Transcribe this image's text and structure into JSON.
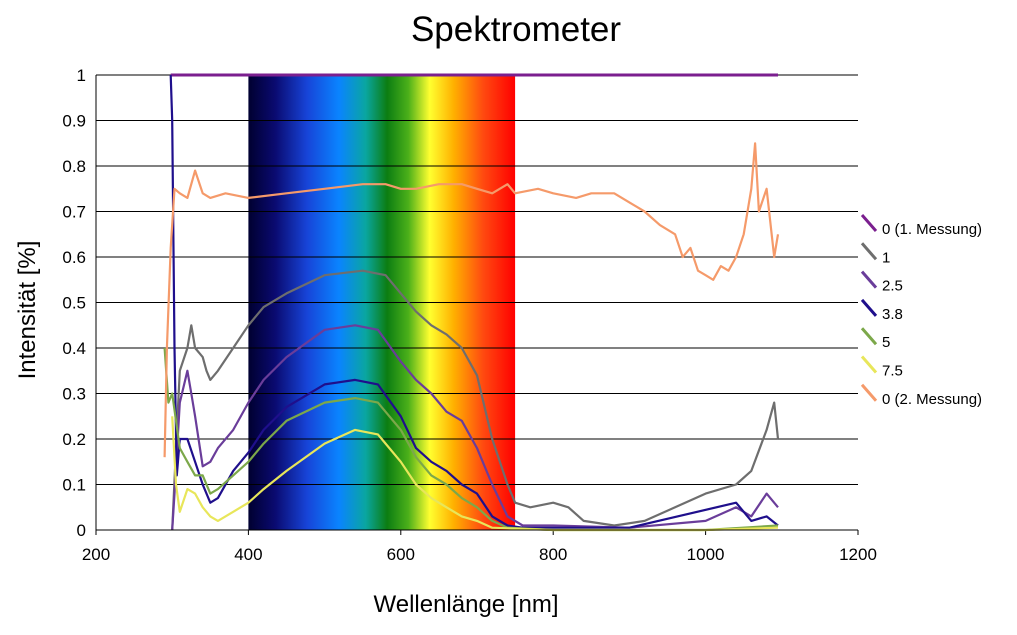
{
  "chart_data": {
    "type": "line",
    "title": "Spektrometer",
    "xlabel": "Wellenlänge [nm]",
    "ylabel": "Intensität [%]",
    "xlim": [
      200,
      1200
    ],
    "ylim": [
      0,
      1
    ],
    "x_ticks": [
      "200",
      "400",
      "600",
      "800",
      "1000",
      "1200"
    ],
    "y_ticks": [
      "0",
      "0.1",
      "0.2",
      "0.3",
      "0.4",
      "0.5",
      "0.6",
      "0.7",
      "0.8",
      "0.9",
      "1"
    ],
    "grid": "horizontal",
    "legend_position": "right",
    "background_band": {
      "x_range": [
        400,
        750
      ],
      "description": "visible spectrum"
    },
    "series": [
      {
        "name": "0 (1. Messung)",
        "color": "#7b1f8f",
        "points": [
          [
            298,
            1.0
          ],
          [
            300,
            1.0
          ],
          [
            400,
            1.0
          ],
          [
            600,
            1.0
          ],
          [
            800,
            1.0
          ],
          [
            1000,
            1.0
          ],
          [
            1095,
            1.0
          ]
        ]
      },
      {
        "name": "1",
        "color": "#6e6e6e",
        "points": [
          [
            300,
            0.0
          ],
          [
            305,
            0.18
          ],
          [
            310,
            0.35
          ],
          [
            320,
            0.4
          ],
          [
            325,
            0.45
          ],
          [
            330,
            0.4
          ],
          [
            340,
            0.38
          ],
          [
            345,
            0.35
          ],
          [
            350,
            0.33
          ],
          [
            360,
            0.35
          ],
          [
            380,
            0.4
          ],
          [
            400,
            0.45
          ],
          [
            420,
            0.49
          ],
          [
            450,
            0.52
          ],
          [
            500,
            0.56
          ],
          [
            550,
            0.57
          ],
          [
            580,
            0.56
          ],
          [
            600,
            0.52
          ],
          [
            620,
            0.48
          ],
          [
            640,
            0.45
          ],
          [
            660,
            0.43
          ],
          [
            680,
            0.4
          ],
          [
            700,
            0.34
          ],
          [
            720,
            0.2
          ],
          [
            740,
            0.1
          ],
          [
            750,
            0.06
          ],
          [
            770,
            0.05
          ],
          [
            800,
            0.06
          ],
          [
            820,
            0.05
          ],
          [
            840,
            0.02
          ],
          [
            880,
            0.01
          ],
          [
            920,
            0.02
          ],
          [
            960,
            0.05
          ],
          [
            1000,
            0.08
          ],
          [
            1040,
            0.1
          ],
          [
            1060,
            0.13
          ],
          [
            1080,
            0.22
          ],
          [
            1090,
            0.28
          ],
          [
            1095,
            0.2
          ]
        ]
      },
      {
        "name": "2.5",
        "color": "#6a3d9a",
        "points": [
          [
            300,
            0.0
          ],
          [
            303,
            0.08
          ],
          [
            310,
            0.28
          ],
          [
            320,
            0.35
          ],
          [
            325,
            0.3
          ],
          [
            330,
            0.25
          ],
          [
            340,
            0.14
          ],
          [
            350,
            0.15
          ],
          [
            360,
            0.18
          ],
          [
            380,
            0.22
          ],
          [
            400,
            0.28
          ],
          [
            420,
            0.33
          ],
          [
            450,
            0.38
          ],
          [
            500,
            0.44
          ],
          [
            540,
            0.45
          ],
          [
            570,
            0.44
          ],
          [
            600,
            0.37
          ],
          [
            620,
            0.33
          ],
          [
            640,
            0.3
          ],
          [
            660,
            0.26
          ],
          [
            680,
            0.24
          ],
          [
            700,
            0.18
          ],
          [
            720,
            0.1
          ],
          [
            740,
            0.03
          ],
          [
            760,
            0.01
          ],
          [
            800,
            0.01
          ],
          [
            900,
            0.005
          ],
          [
            1000,
            0.02
          ],
          [
            1040,
            0.05
          ],
          [
            1060,
            0.03
          ],
          [
            1080,
            0.08
          ],
          [
            1095,
            0.05
          ]
        ]
      },
      {
        "name": "3.8",
        "color": "#1f0f8c",
        "points": [
          [
            298,
            1.0
          ],
          [
            300,
            0.9
          ],
          [
            303,
            0.4
          ],
          [
            306,
            0.12
          ],
          [
            310,
            0.2
          ],
          [
            320,
            0.2
          ],
          [
            330,
            0.15
          ],
          [
            340,
            0.1
          ],
          [
            350,
            0.06
          ],
          [
            360,
            0.07
          ],
          [
            380,
            0.13
          ],
          [
            400,
            0.17
          ],
          [
            420,
            0.22
          ],
          [
            450,
            0.27
          ],
          [
            500,
            0.32
          ],
          [
            540,
            0.33
          ],
          [
            570,
            0.32
          ],
          [
            600,
            0.25
          ],
          [
            620,
            0.18
          ],
          [
            640,
            0.15
          ],
          [
            660,
            0.13
          ],
          [
            680,
            0.1
          ],
          [
            700,
            0.08
          ],
          [
            720,
            0.03
          ],
          [
            740,
            0.01
          ],
          [
            760,
            0.005
          ],
          [
            900,
            0.005
          ],
          [
            1040,
            0.06
          ],
          [
            1060,
            0.02
          ],
          [
            1080,
            0.03
          ],
          [
            1095,
            0.01
          ]
        ]
      },
      {
        "name": "5",
        "color": "#7ca84a",
        "points": [
          [
            290,
            0.4
          ],
          [
            295,
            0.28
          ],
          [
            300,
            0.3
          ],
          [
            310,
            0.18
          ],
          [
            320,
            0.15
          ],
          [
            330,
            0.12
          ],
          [
            340,
            0.12
          ],
          [
            350,
            0.08
          ],
          [
            360,
            0.09
          ],
          [
            380,
            0.12
          ],
          [
            400,
            0.15
          ],
          [
            420,
            0.19
          ],
          [
            450,
            0.24
          ],
          [
            500,
            0.28
          ],
          [
            540,
            0.29
          ],
          [
            570,
            0.28
          ],
          [
            600,
            0.22
          ],
          [
            620,
            0.16
          ],
          [
            640,
            0.12
          ],
          [
            660,
            0.1
          ],
          [
            680,
            0.07
          ],
          [
            700,
            0.05
          ],
          [
            720,
            0.02
          ],
          [
            740,
            0.005
          ],
          [
            800,
            0.0
          ],
          [
            1000,
            0.0
          ],
          [
            1095,
            0.01
          ]
        ]
      },
      {
        "name": "7.5",
        "color": "#e8e65a",
        "points": [
          [
            300,
            0.25
          ],
          [
            305,
            0.1
          ],
          [
            310,
            0.04
          ],
          [
            320,
            0.09
          ],
          [
            330,
            0.08
          ],
          [
            340,
            0.05
          ],
          [
            350,
            0.03
          ],
          [
            360,
            0.02
          ],
          [
            380,
            0.04
          ],
          [
            400,
            0.06
          ],
          [
            420,
            0.09
          ],
          [
            450,
            0.13
          ],
          [
            500,
            0.19
          ],
          [
            540,
            0.22
          ],
          [
            570,
            0.21
          ],
          [
            600,
            0.15
          ],
          [
            620,
            0.1
          ],
          [
            640,
            0.07
          ],
          [
            660,
            0.05
          ],
          [
            680,
            0.03
          ],
          [
            700,
            0.02
          ],
          [
            720,
            0.005
          ],
          [
            800,
            0.0
          ],
          [
            1000,
            0.0
          ],
          [
            1095,
            0.005
          ]
        ]
      },
      {
        "name": "0 (2. Messung)",
        "color": "#f59a6a",
        "points": [
          [
            290,
            0.16
          ],
          [
            293,
            0.4
          ],
          [
            298,
            0.62
          ],
          [
            303,
            0.75
          ],
          [
            310,
            0.74
          ],
          [
            320,
            0.73
          ],
          [
            330,
            0.79
          ],
          [
            340,
            0.74
          ],
          [
            350,
            0.73
          ],
          [
            370,
            0.74
          ],
          [
            400,
            0.73
          ],
          [
            450,
            0.74
          ],
          [
            500,
            0.75
          ],
          [
            550,
            0.76
          ],
          [
            580,
            0.76
          ],
          [
            600,
            0.75
          ],
          [
            620,
            0.75
          ],
          [
            650,
            0.76
          ],
          [
            680,
            0.76
          ],
          [
            700,
            0.75
          ],
          [
            720,
            0.74
          ],
          [
            740,
            0.76
          ],
          [
            750,
            0.74
          ],
          [
            780,
            0.75
          ],
          [
            800,
            0.74
          ],
          [
            830,
            0.73
          ],
          [
            850,
            0.74
          ],
          [
            880,
            0.74
          ],
          [
            900,
            0.72
          ],
          [
            920,
            0.7
          ],
          [
            940,
            0.67
          ],
          [
            960,
            0.65
          ],
          [
            970,
            0.6
          ],
          [
            980,
            0.62
          ],
          [
            990,
            0.57
          ],
          [
            1000,
            0.56
          ],
          [
            1010,
            0.55
          ],
          [
            1020,
            0.58
          ],
          [
            1030,
            0.57
          ],
          [
            1040,
            0.6
          ],
          [
            1050,
            0.65
          ],
          [
            1060,
            0.75
          ],
          [
            1065,
            0.85
          ],
          [
            1070,
            0.7
          ],
          [
            1080,
            0.75
          ],
          [
            1090,
            0.6
          ],
          [
            1095,
            0.65
          ]
        ]
      }
    ]
  }
}
